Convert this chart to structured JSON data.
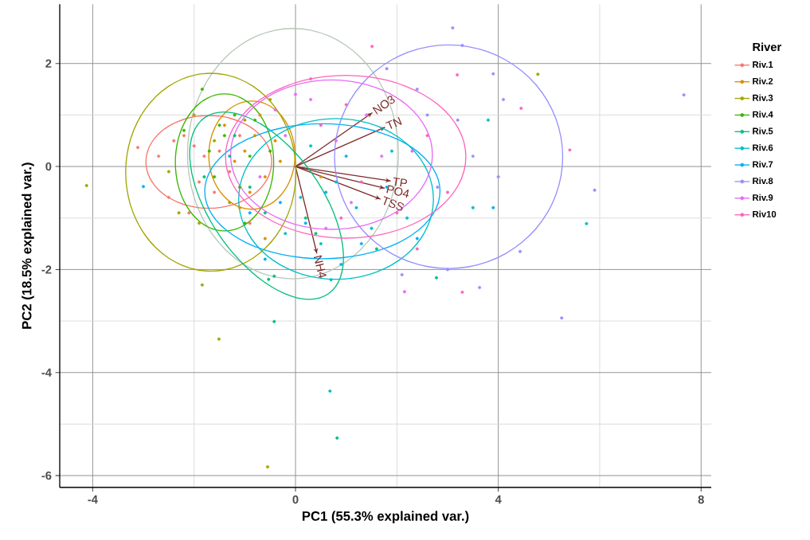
{
  "chart_data": {
    "type": "scatter",
    "xlabel": "PC1 (55.3% explained var.)",
    "ylabel": "PC2 (18.5% explained var.)",
    "legend_title": "River",
    "legend": "right",
    "grid": true,
    "marker": "circle",
    "xlim": [
      -4.65,
      8.2
    ],
    "ylim": [
      -6.23,
      3.15
    ],
    "xticks": [
      -4,
      0,
      4,
      8
    ],
    "yticks": [
      -6,
      -4,
      -2,
      0,
      2
    ],
    "annotations": [
      {
        "text": "NO3",
        "x": 1.51,
        "y": 1.04
      },
      {
        "text": "TN",
        "x": 1.76,
        "y": 0.76
      },
      {
        "text": "TP",
        "x": 1.87,
        "y": -0.28
      },
      {
        "text": "PO4",
        "x": 1.75,
        "y": -0.42
      },
      {
        "text": "TSS",
        "x": 1.67,
        "y": -0.63
      },
      {
        "text": "NH4",
        "x": 0.42,
        "y": -1.68
      }
    ],
    "series": [
      {
        "name": "Riv.1",
        "color": "#F8766D",
        "x": [
          -2.4,
          -2.2,
          -2.0,
          -2.7,
          -3.11,
          -2.5,
          -2.1,
          -1.8,
          -1.5,
          -1.3,
          -1.1,
          -1.9,
          -0.9,
          -1.6
        ],
        "values": [
          0.5,
          0.6,
          0.4,
          0.2,
          0.37,
          -0.6,
          -0.9,
          0.2,
          0.3,
          -0.1,
          0.6,
          -0.3,
          -1.1,
          -0.5
        ]
      },
      {
        "name": "Riv.2",
        "color": "#D89000",
        "x": [
          -1.0,
          -0.8,
          -0.6,
          -1.2,
          -0.4,
          -0.9,
          -1.4,
          -0.3,
          -0.7,
          -1.1,
          0.5,
          -0.6
        ],
        "values": [
          0.3,
          0.6,
          -0.2,
          0.1,
          0.5,
          -0.5,
          0.8,
          0.1,
          1.0,
          -0.8,
          -0.2,
          -1.4
        ]
      },
      {
        "name": "Riv.3",
        "color": "#A3A500",
        "x": [
          -4.12,
          -1.84,
          -1.51,
          -0.55,
          4.78,
          -2.3,
          -1.6,
          -1.0,
          -2.0,
          -1.3,
          -0.5,
          -2.5,
          -1.9
        ],
        "values": [
          -0.37,
          -2.3,
          -3.35,
          -5.83,
          1.79,
          -0.9,
          0.5,
          0.9,
          1.0,
          -0.7,
          1.3,
          -0.1,
          -1.1
        ]
      },
      {
        "name": "Riv.4",
        "color": "#39B600",
        "x": [
          -1.84,
          -1.5,
          -1.2,
          -1.7,
          -1.4,
          -0.9,
          -1.1,
          -2.2,
          -0.8,
          -1.6,
          -1.0,
          -0.5
        ],
        "values": [
          1.5,
          0.8,
          1.0,
          0.3,
          0.6,
          0.2,
          -0.4,
          0.7,
          0.9,
          -0.2,
          -1.1,
          0.3
        ]
      },
      {
        "name": "Riv.5",
        "color": "#00BF7D",
        "x": [
          -0.42,
          0.82,
          2.78,
          -0.53,
          -0.42,
          -1.3,
          -0.9,
          -0.6,
          -1.8,
          0.2,
          0.4,
          -1.2,
          1.6
        ],
        "values": [
          -3.01,
          -5.27,
          -2.16,
          -2.19,
          -2.13,
          0.2,
          -0.4,
          -0.9,
          -0.2,
          -1.0,
          -1.3,
          0.6,
          -1.6
        ]
      },
      {
        "name": "Riv.6",
        "color": "#00BFC4",
        "x": [
          0.68,
          5.74,
          0.3,
          0.8,
          1.2,
          0.5,
          1.5,
          0.1,
          1.9,
          2.2,
          0.7,
          -0.2,
          3.8,
          3.5
        ],
        "values": [
          -4.36,
          -1.11,
          0.4,
          -0.3,
          -0.8,
          -1.5,
          -1.2,
          -0.6,
          0.3,
          -1.0,
          -2.2,
          -1.3,
          0.9,
          -0.8
        ]
      },
      {
        "name": "Riv.7",
        "color": "#00B0F6",
        "x": [
          -3.0,
          0.6,
          -0.3,
          1.0,
          1.3,
          0.2,
          -0.6,
          2.4,
          1.8,
          -0.9,
          0.9,
          3.9
        ],
        "values": [
          -0.39,
          -0.5,
          -0.7,
          0.2,
          -1.5,
          -1.1,
          -1.8,
          -1.4,
          -0.4,
          -0.9,
          -1.9,
          -0.8
        ]
      },
      {
        "name": "Riv.8",
        "color": "#9590FF",
        "x": [
          7.66,
          5.9,
          5.25,
          4.43,
          3.1,
          3.29,
          3.63,
          3.9,
          4.1,
          2.6,
          3.2,
          2.8,
          4.0,
          1.8,
          2.4,
          2.1,
          3.0,
          3.5
        ],
        "values": [
          1.39,
          -0.46,
          -2.94,
          -1.65,
          2.69,
          2.35,
          -2.35,
          1.8,
          1.3,
          1.0,
          0.9,
          -0.4,
          -0.2,
          1.9,
          1.5,
          -2.1,
          -2.0,
          0.2
        ]
      },
      {
        "name": "Riv.9",
        "color": "#E76BF3",
        "x": [
          2.15,
          0.3,
          -0.2,
          0.8,
          1.1,
          0.0,
          1.7,
          0.6,
          -0.4,
          1.4,
          2.3,
          -0.7
        ],
        "values": [
          -2.43,
          1.3,
          0.6,
          0.5,
          -0.7,
          1.4,
          0.2,
          -1.2,
          1.1,
          1.0,
          0.3,
          -0.2
        ]
      },
      {
        "name": "Riv10",
        "color": "#FF62BC",
        "x": [
          5.41,
          3.19,
          4.45,
          3.29,
          1.51,
          0.5,
          1.0,
          2.6,
          2.0,
          0.3,
          1.3,
          3.0,
          0.9,
          2.4
        ],
        "values": [
          0.32,
          1.78,
          1.13,
          -2.44,
          2.33,
          0.8,
          1.2,
          0.6,
          -0.9,
          1.7,
          -0.3,
          -0.5,
          -1.0,
          -1.6
        ]
      },
      {
        "type": "line",
        "marker": "none",
        "line_style": "solid",
        "color": "#7F2A2A",
        "x": [
          0,
          1.51
        ],
        "values": [
          0,
          1.04
        ]
      },
      {
        "type": "line",
        "marker": "none",
        "line_style": "solid",
        "color": "#7F2A2A",
        "x": [
          0,
          1.76
        ],
        "values": [
          0,
          0.76
        ]
      },
      {
        "type": "line",
        "marker": "none",
        "line_style": "solid",
        "color": "#7F2A2A",
        "x": [
          0,
          1.87
        ],
        "values": [
          0,
          -0.28
        ]
      },
      {
        "type": "line",
        "marker": "none",
        "line_style": "solid",
        "color": "#7F2A2A",
        "x": [
          0,
          1.75
        ],
        "values": [
          0,
          -0.42
        ]
      },
      {
        "type": "line",
        "marker": "none",
        "line_style": "solid",
        "color": "#7F2A2A",
        "x": [
          0,
          1.67
        ],
        "values": [
          0,
          -0.63
        ]
      },
      {
        "type": "line",
        "marker": "none",
        "line_style": "solid",
        "color": "#7F2A2A",
        "x": [
          0,
          0.42
        ],
        "values": [
          0,
          -1.68
        ]
      }
    ]
  }
}
